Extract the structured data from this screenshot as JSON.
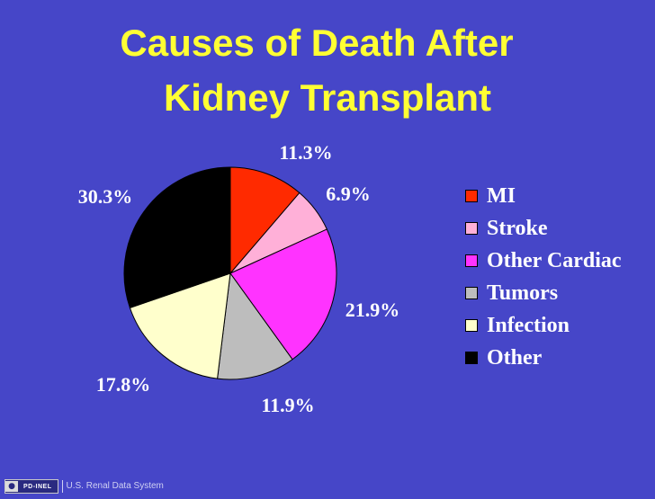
{
  "slide": {
    "title_line1": "Causes of Death After",
    "title_line2": "Kidney Transplant"
  },
  "chart_data": {
    "type": "pie",
    "title": "Causes of Death After Kidney Transplant",
    "legend_position": "right",
    "start_angle_deg": 0,
    "direction": "clockwise",
    "slices": [
      {
        "name": "MI",
        "value": 11.3,
        "label": "11.3%",
        "color": "#ff2a00"
      },
      {
        "name": "Stroke",
        "value": 6.9,
        "label": "6.9%",
        "color": "#ffb0d8"
      },
      {
        "name": "Other Cardiac",
        "value": 21.9,
        "label": "21.9%",
        "color": "#ff33ff"
      },
      {
        "name": "Tumors",
        "value": 11.9,
        "label": "11.9%",
        "color": "#bdbdbd"
      },
      {
        "name": "Infection",
        "value": 17.8,
        "label": "17.8%",
        "color": "#ffffcc"
      },
      {
        "name": "Other",
        "value": 30.3,
        "label": "30.3%",
        "color": "#000000"
      }
    ]
  },
  "footer": {
    "logo_text": "PD-INEL",
    "logo_icon": "pd-logo-icon",
    "source": "U.S. Renal Data System"
  },
  "colors": {
    "background": "#4646c8",
    "title": "#ffff33",
    "text": "#ffffff"
  }
}
